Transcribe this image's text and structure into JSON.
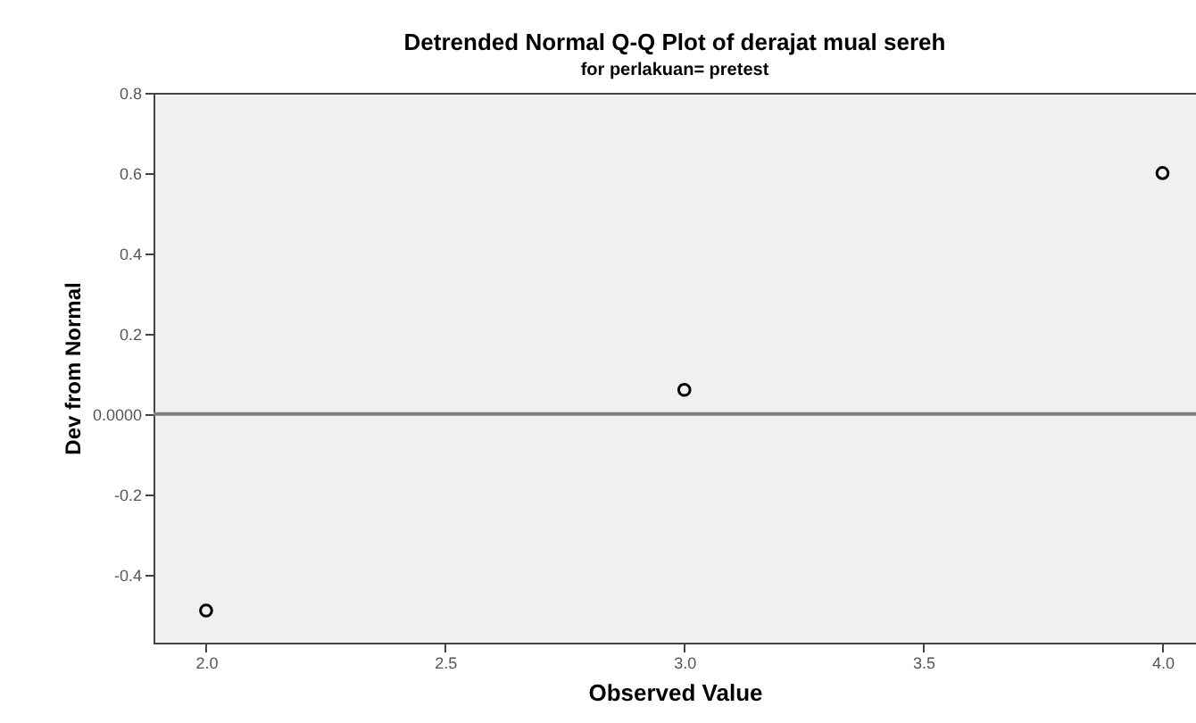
{
  "chart_data": {
    "type": "scatter",
    "title": "Detrended Normal Q-Q Plot of derajat mual sereh",
    "subtitle": "for perlakuan= pretest",
    "xlabel": "Observed Value",
    "ylabel": "Dev from Normal",
    "x": [
      2.0,
      3.0,
      4.0
    ],
    "values": [
      -0.49,
      0.06,
      0.6
    ],
    "color": "#000000",
    "marker": "circle",
    "xlim": [
      1.89,
      4.07
    ],
    "xticks": [
      {
        "value": 2,
        "label": "2.0"
      },
      {
        "value": 2.5,
        "label": "2.5"
      },
      {
        "value": 3,
        "label": "3.0"
      },
      {
        "value": 3.5,
        "label": "3.5"
      },
      {
        "value": 4,
        "label": "4.0"
      }
    ],
    "ylim": [
      -0.57,
      0.8
    ],
    "yticks": [
      {
        "value": -0.4,
        "label": "-0.4"
      },
      {
        "value": -0.2,
        "label": "-0.2"
      },
      {
        "value": 0,
        "label": "0.0000"
      },
      {
        "value": 0.2,
        "label": "0.2"
      },
      {
        "value": 0.4,
        "label": "0.4"
      },
      {
        "value": 0.6,
        "label": "0.6"
      },
      {
        "value": 0.8,
        "label": "0.8"
      }
    ],
    "ref_lines": [
      {
        "axis": "y",
        "value": 0,
        "color": "#7f7f7f"
      }
    ],
    "grid": false
  }
}
